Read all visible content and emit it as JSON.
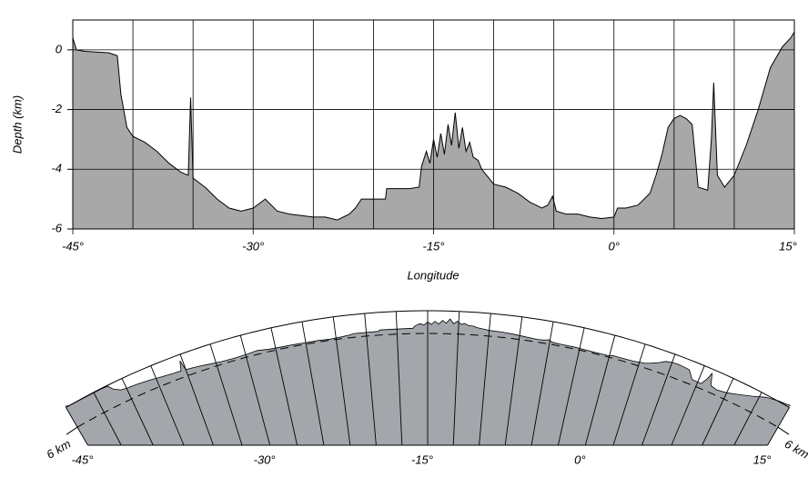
{
  "chart_data": [
    {
      "type": "area",
      "ylabel": "Depth (km)",
      "xlabel": "Longitude",
      "color": "#a8a8a8",
      "grid": true,
      "xlim": [
        -45,
        15
      ],
      "ylim": [
        -6,
        1
      ],
      "yticks": [
        -6,
        -4,
        -2,
        0
      ],
      "xticks": [
        {
          "value": -45,
          "label": "-45°"
        },
        {
          "value": -30,
          "label": "-30°"
        },
        {
          "value": -15,
          "label": "-15°"
        },
        {
          "value": 0,
          "label": "0°"
        },
        {
          "value": 15,
          "label": "15°"
        }
      ],
      "xminorticks": [
        -40,
        -35,
        -25,
        -20,
        -10,
        -5,
        5,
        10
      ],
      "x": [
        -45,
        -44.7,
        -44,
        -42,
        -41.3,
        -41,
        -40.5,
        -40,
        -39,
        -38,
        -37,
        -36,
        -35.4,
        -35.2,
        -35,
        -34,
        -33,
        -32,
        -31,
        -30,
        -29,
        -28,
        -27,
        -26,
        -25,
        -24,
        -23,
        -22,
        -21.5,
        -21,
        -19,
        -18.9,
        -17,
        -16.2,
        -16,
        -15.6,
        -15.3,
        -15,
        -14.7,
        -14.4,
        -14.1,
        -13.8,
        -13.5,
        -13.2,
        -12.9,
        -12.6,
        -12.3,
        -12,
        -11.7,
        -11.3,
        -11,
        -10.4,
        -10,
        -9,
        -8,
        -7,
        -6,
        -5.5,
        -5.1,
        -4.8,
        -4,
        -3,
        -2,
        -1,
        0,
        0.3,
        1,
        2,
        3,
        3.5,
        4,
        4.5,
        5,
        5.5,
        6,
        6.5,
        7,
        7.8,
        8.1,
        8.3,
        8.6,
        9.2,
        10,
        11,
        12,
        13,
        14,
        14.7,
        15
      ],
      "values": [
        0.4,
        0,
        -0.05,
        -0.1,
        -0.2,
        -1.5,
        -2.6,
        -2.9,
        -3.1,
        -3.4,
        -3.8,
        -4.1,
        -4.2,
        -1.6,
        -4.3,
        -4.6,
        -5.0,
        -5.3,
        -5.4,
        -5.3,
        -5.0,
        -5.4,
        -5.5,
        -5.55,
        -5.6,
        -5.6,
        -5.7,
        -5.5,
        -5.3,
        -5.0,
        -5.0,
        -4.65,
        -4.65,
        -4.6,
        -3.9,
        -3.4,
        -3.8,
        -3.0,
        -3.6,
        -2.8,
        -3.5,
        -2.5,
        -3.2,
        -2.1,
        -3.3,
        -2.6,
        -3.4,
        -3.1,
        -3.6,
        -3.7,
        -4.0,
        -4.3,
        -4.5,
        -4.6,
        -4.8,
        -5.1,
        -5.3,
        -5.2,
        -4.9,
        -5.4,
        -5.5,
        -5.5,
        -5.6,
        -5.65,
        -5.6,
        -5.3,
        -5.3,
        -5.2,
        -4.8,
        -4.2,
        -3.5,
        -2.6,
        -2.3,
        -2.2,
        -2.3,
        -2.5,
        -4.6,
        -4.7,
        -3.0,
        -1.1,
        -4.2,
        -4.6,
        -4.2,
        -3.2,
        -2.0,
        -0.6,
        0.1,
        0.4,
        0.6
      ]
    },
    {
      "type": "arc-area",
      "color": "#a3a7ac",
      "reference": {
        "value": -6,
        "label": "6 km"
      },
      "xticks": [
        {
          "value": -45,
          "label": "-45°"
        },
        {
          "value": -30,
          "label": "-30°"
        },
        {
          "value": -15,
          "label": "-15°"
        },
        {
          "value": 0,
          "label": "0°"
        },
        {
          "value": 15,
          "label": "15°"
        }
      ],
      "xminorticks": [
        -42.5,
        -40,
        -37.5,
        -35,
        -32.5,
        -27.5,
        -25,
        -22.5,
        -20,
        -17.5,
        -12.5,
        -10,
        -7.5,
        -5,
        -2.5,
        2.5,
        5,
        7.5,
        10,
        12.5
      ]
    }
  ]
}
